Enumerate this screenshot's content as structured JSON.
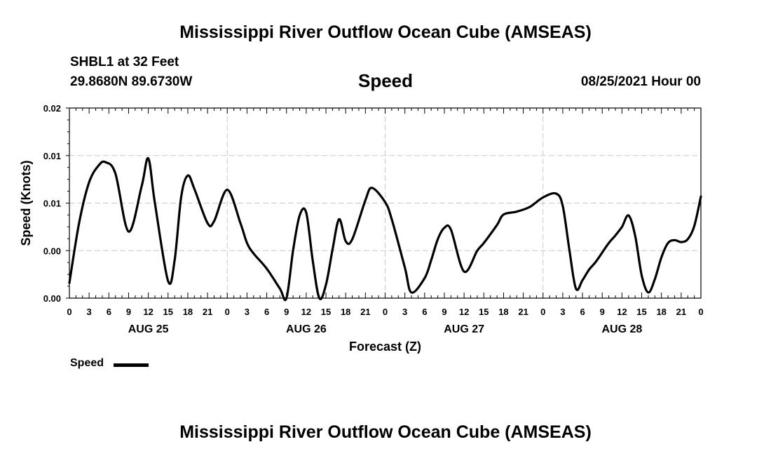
{
  "header": {
    "title": "Mississippi River Outflow Ocean Cube (AMSEAS)",
    "station": "SHBL1 at 32 Feet",
    "coords": "29.8680N  89.6730W",
    "variable": "Speed",
    "datetime": "08/25/2021 Hour 00"
  },
  "footer": {
    "title": "Mississippi River Outflow Ocean Cube (AMSEAS)"
  },
  "legend": {
    "label": "Speed",
    "color": "#000000"
  },
  "chart_data": {
    "type": "line",
    "title": "Speed",
    "xlabel": "Forecast (Z)",
    "ylabel": "Speed (Knots)",
    "xlim": [
      0,
      96
    ],
    "ylim": [
      0,
      0.02
    ],
    "y_ticks": [
      0,
      0.005,
      0.01,
      0.015,
      0.02
    ],
    "y_tick_labels": [
      "0.00",
      "0.00",
      "0.01",
      "0.01",
      "0.02"
    ],
    "x_tick_step_hours": 3,
    "x_tick_labels": [
      "0",
      "3",
      "6",
      "9",
      "12",
      "15",
      "18",
      "21",
      "0",
      "3",
      "6",
      "9",
      "12",
      "15",
      "18",
      "21",
      "0",
      "3",
      "6",
      "9",
      "12",
      "15",
      "18",
      "21",
      "0",
      "3",
      "6",
      "9",
      "12",
      "15",
      "18",
      "21",
      "0"
    ],
    "day_labels": [
      {
        "label": "AUG 25",
        "hour": 12
      },
      {
        "label": "AUG 26",
        "hour": 36
      },
      {
        "label": "AUG 27",
        "hour": 60
      },
      {
        "label": "AUG 28",
        "hour": 84
      }
    ],
    "grid": true,
    "legend_position": "bottom-left",
    "series": [
      {
        "name": "Speed",
        "color": "#000000",
        "x": [
          0,
          1.5,
          3,
          4.5,
          5.5,
          7,
          9,
          11,
          12,
          13,
          15,
          16,
          17,
          18,
          19,
          21,
          22,
          24,
          26,
          27,
          28,
          30,
          32,
          33,
          34,
          35,
          36,
          37,
          38,
          39,
          40,
          41,
          42,
          43,
          45,
          46,
          48,
          49,
          51,
          52,
          54,
          55,
          56,
          57,
          58,
          60,
          62,
          63,
          65,
          66,
          68,
          70,
          72,
          74,
          75,
          76,
          77,
          78,
          79,
          80,
          81,
          82,
          83,
          84,
          85,
          86,
          87,
          88,
          89,
          90,
          91,
          92,
          93,
          94,
          95,
          96
        ],
        "y": [
          0.0016,
          0.008,
          0.0122,
          0.014,
          0.0143,
          0.0131,
          0.007,
          0.0118,
          0.0147,
          0.01,
          0.0018,
          0.004,
          0.0107,
          0.0129,
          0.0115,
          0.0079,
          0.0081,
          0.0114,
          0.0079,
          0.0058,
          0.0047,
          0.0031,
          0.001,
          0.0,
          0.005,
          0.0087,
          0.009,
          0.0039,
          0.0,
          0.0014,
          0.0051,
          0.0083,
          0.006,
          0.0062,
          0.0103,
          0.0116,
          0.0101,
          0.0083,
          0.0032,
          0.0006,
          0.0021,
          0.004,
          0.0062,
          0.0074,
          0.0072,
          0.0028,
          0.005,
          0.0058,
          0.0077,
          0.0088,
          0.0091,
          0.0096,
          0.0106,
          0.011,
          0.0097,
          0.0051,
          0.001,
          0.0019,
          0.003,
          0.0038,
          0.0048,
          0.0058,
          0.0066,
          0.0075,
          0.0087,
          0.0066,
          0.0024,
          0.0006,
          0.002,
          0.0043,
          0.0058,
          0.0061,
          0.0059,
          0.0062,
          0.0076,
          0.0107
        ]
      }
    ]
  }
}
